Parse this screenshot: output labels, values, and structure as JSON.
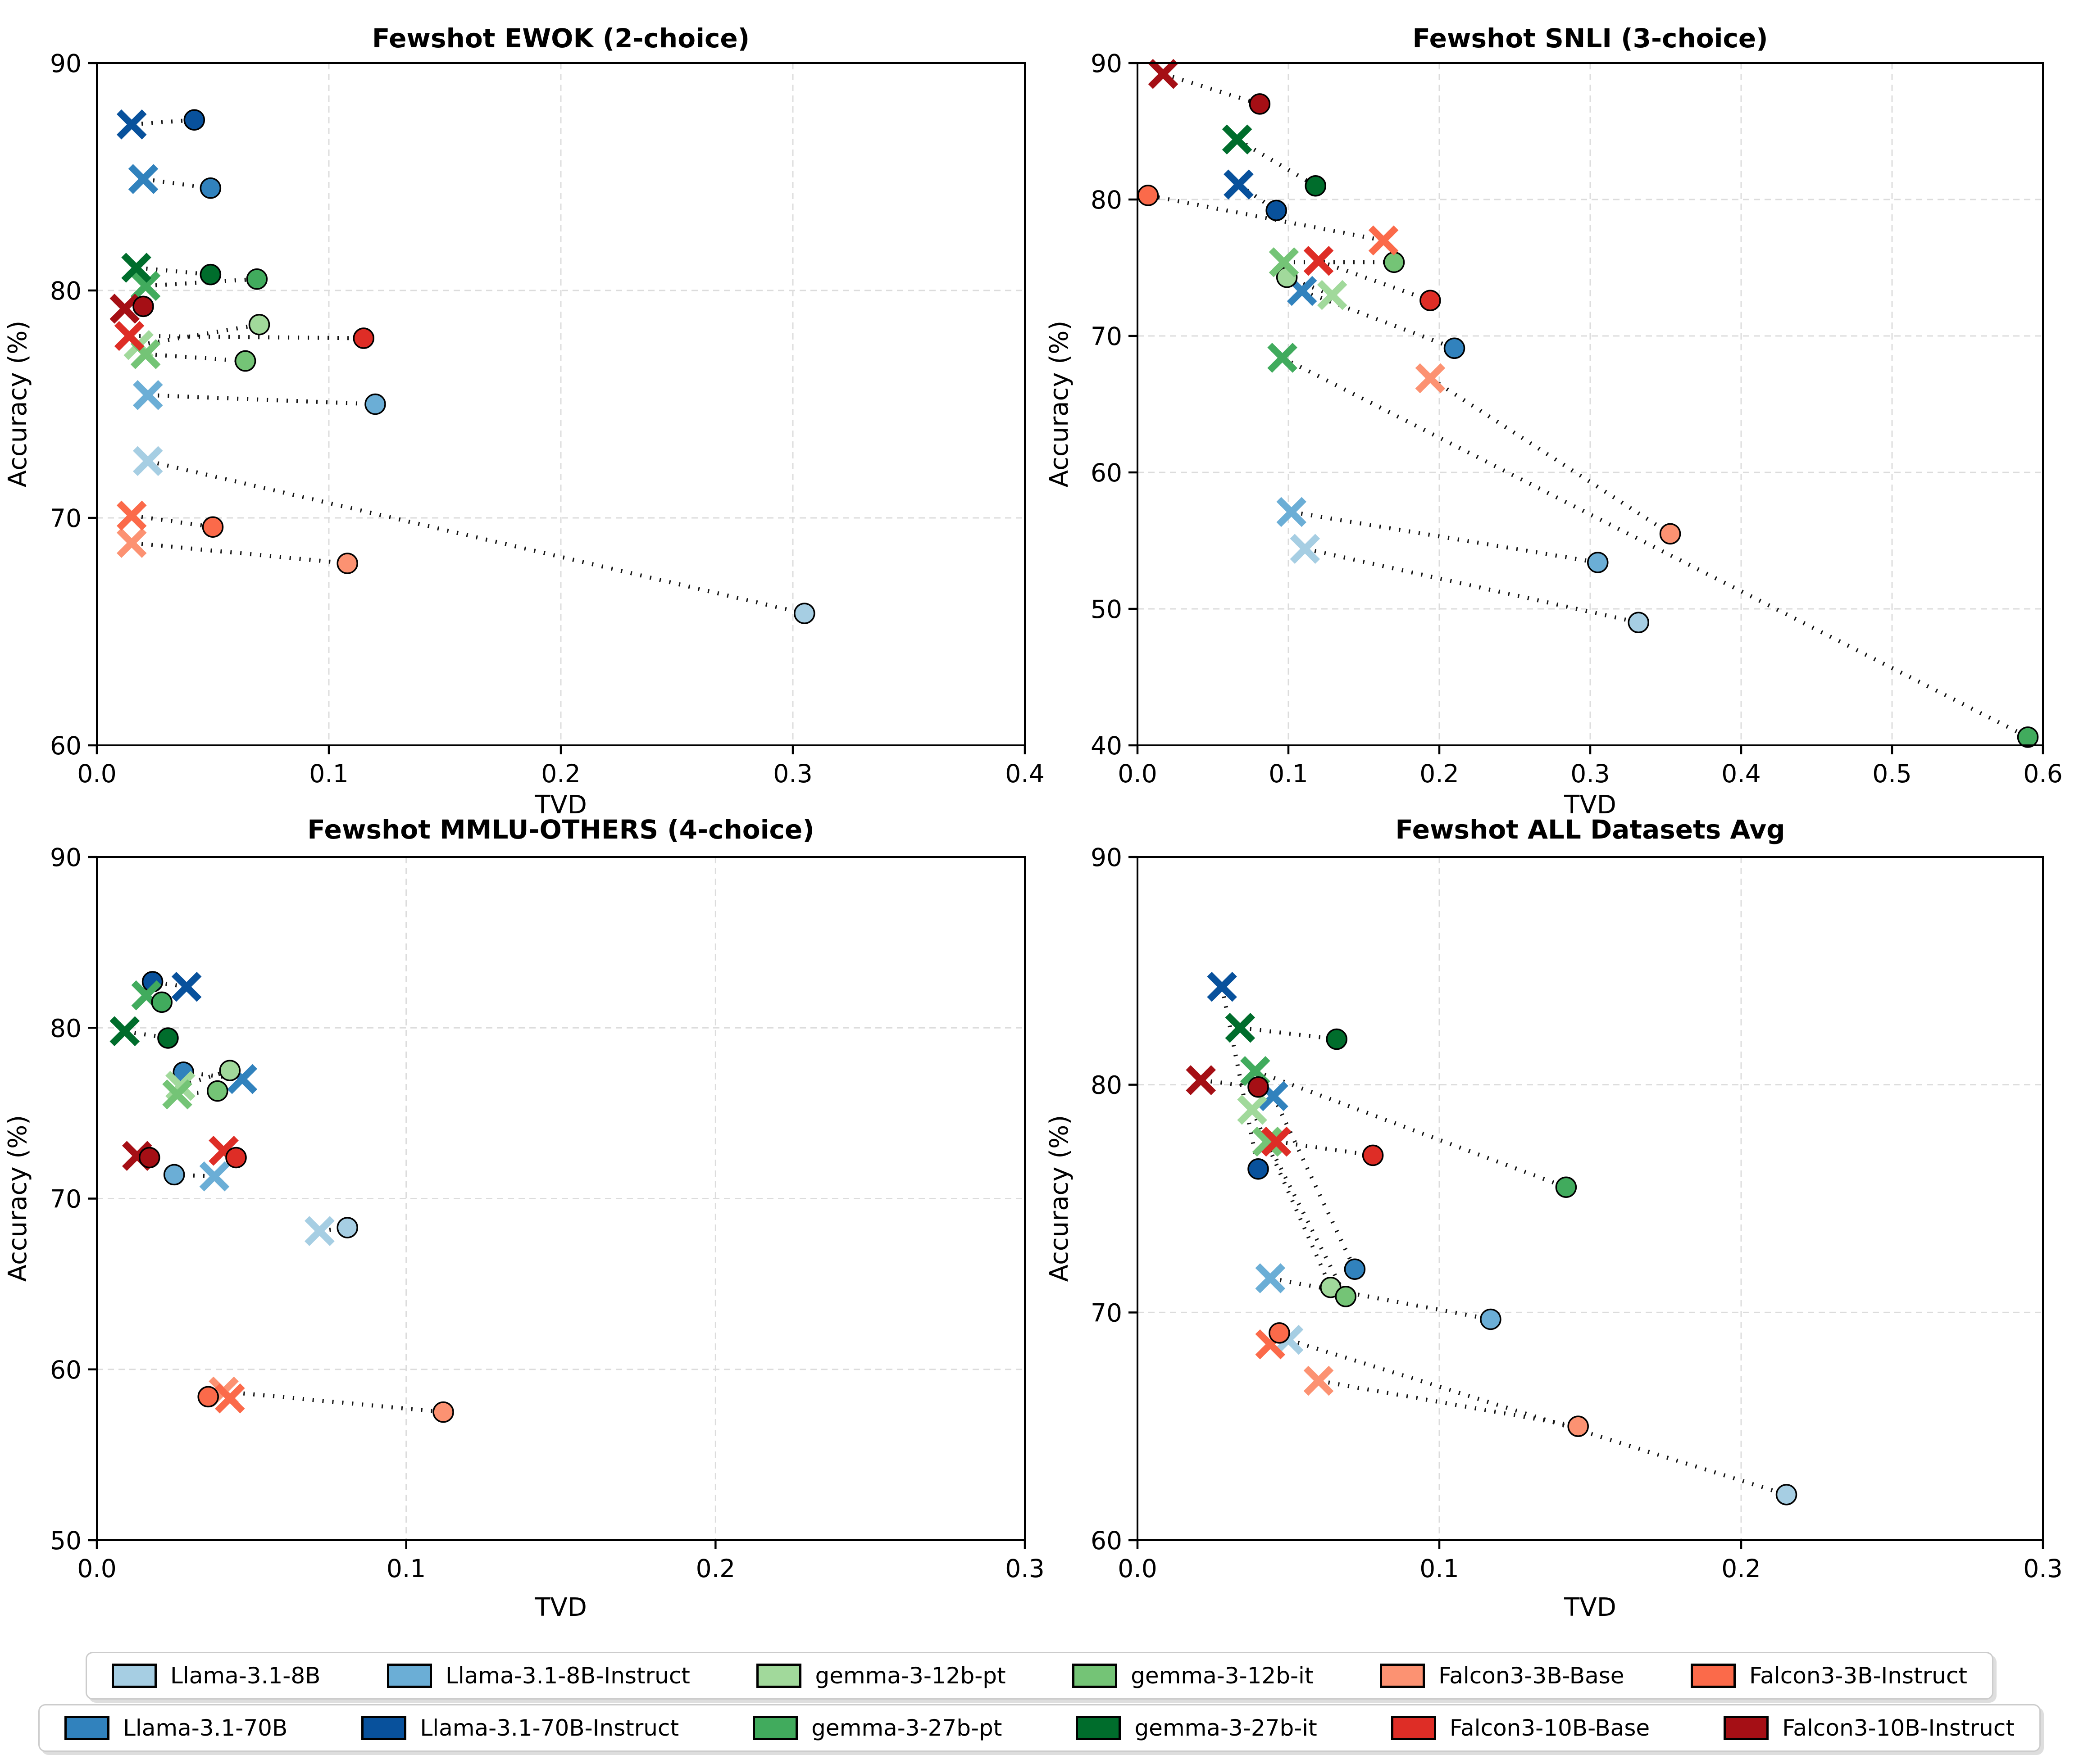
{
  "figure": {
    "xlabel": "TVD",
    "ylabel": "Accuracy (%)"
  },
  "legend": {
    "rows": [
      [
        {
          "label": "Llama-3.1-8B",
          "color": "#a6cee3"
        },
        {
          "label": "Llama-3.1-8B-Instruct",
          "color": "#6baed6"
        },
        {
          "label": "gemma-3-12b-pt",
          "color": "#a1d99b"
        },
        {
          "label": "gemma-3-12b-it",
          "color": "#74c476"
        },
        {
          "label": "Falcon3-3B-Base",
          "color": "#fc9272"
        },
        {
          "label": "Falcon3-3B-Instruct",
          "color": "#fb6a4a"
        }
      ],
      [
        {
          "label": "Llama-3.1-70B",
          "color": "#3182bd"
        },
        {
          "label": "Llama-3.1-70B-Instruct",
          "color": "#08519c"
        },
        {
          "label": "gemma-3-27b-pt",
          "color": "#41ab5d"
        },
        {
          "label": "gemma-3-27b-it",
          "color": "#006d2c"
        },
        {
          "label": "Falcon3-10B-Base",
          "color": "#de2d26"
        },
        {
          "label": "Falcon3-10B-Instruct",
          "color": "#a50f15"
        }
      ]
    ]
  },
  "chart_data": [
    {
      "id": "ewok",
      "type": "scatter",
      "title": "Fewshot EWOK (2-choice)",
      "xlabel": "TVD",
      "ylabel": "Accuracy (%)",
      "xlim": [
        0.0,
        0.4
      ],
      "ylim": [
        60,
        90
      ],
      "xticks": [
        0.0,
        0.1,
        0.2,
        0.3,
        0.4
      ],
      "yticks": [
        60,
        70,
        80,
        90
      ],
      "grid": true,
      "series": [
        {
          "name": "Llama-3.1-8B",
          "color": "#a6cee3",
          "x_marker": [
            0.022,
            72.5
          ],
          "o_marker": [
            0.305,
            65.8
          ]
        },
        {
          "name": "Llama-3.1-8B-Instruct",
          "color": "#6baed6",
          "x_marker": [
            0.022,
            75.4
          ],
          "o_marker": [
            0.12,
            75.0
          ]
        },
        {
          "name": "Llama-3.1-70B",
          "color": "#3182bd",
          "x_marker": [
            0.02,
            84.9
          ],
          "o_marker": [
            0.049,
            84.5
          ]
        },
        {
          "name": "Llama-3.1-70B-Instruct",
          "color": "#08519c",
          "x_marker": [
            0.015,
            87.3
          ],
          "o_marker": [
            0.042,
            87.5
          ]
        },
        {
          "name": "gemma-3-12b-pt",
          "color": "#a1d99b",
          "x_marker": [
            0.018,
            77.6
          ],
          "o_marker": [
            0.07,
            78.5
          ]
        },
        {
          "name": "gemma-3-12b-it",
          "color": "#74c476",
          "x_marker": [
            0.021,
            77.2
          ],
          "o_marker": [
            0.064,
            76.9
          ]
        },
        {
          "name": "gemma-3-27b-pt",
          "color": "#41ab5d",
          "x_marker": [
            0.021,
            80.2
          ],
          "o_marker": [
            0.069,
            80.5
          ]
        },
        {
          "name": "gemma-3-27b-it",
          "color": "#006d2c",
          "x_marker": [
            0.017,
            81.0
          ],
          "o_marker": [
            0.049,
            80.7
          ]
        },
        {
          "name": "Falcon3-3B-Base",
          "color": "#fc9272",
          "x_marker": [
            0.015,
            68.9
          ],
          "o_marker": [
            0.108,
            68.0
          ]
        },
        {
          "name": "Falcon3-3B-Instruct",
          "color": "#fb6a4a",
          "x_marker": [
            0.015,
            70.1
          ],
          "o_marker": [
            0.05,
            69.6
          ]
        },
        {
          "name": "Falcon3-10B-Base",
          "color": "#de2d26",
          "x_marker": [
            0.014,
            78.0
          ],
          "o_marker": [
            0.115,
            77.9
          ]
        },
        {
          "name": "Falcon3-10B-Instruct",
          "color": "#a50f15",
          "x_marker": [
            0.012,
            79.2
          ],
          "o_marker": [
            0.02,
            79.3
          ]
        }
      ]
    },
    {
      "id": "snli",
      "type": "scatter",
      "title": "Fewshot SNLI (3-choice)",
      "xlabel": "TVD",
      "ylabel": "Accuracy (%)",
      "xlim": [
        0.0,
        0.6
      ],
      "ylim": [
        40,
        90
      ],
      "xticks": [
        0.0,
        0.1,
        0.2,
        0.3,
        0.4,
        0.5,
        0.6
      ],
      "yticks": [
        40,
        50,
        60,
        70,
        80,
        90
      ],
      "grid": true,
      "series": [
        {
          "name": "Llama-3.1-8B",
          "color": "#a6cee3",
          "x_marker": [
            0.111,
            54.4
          ],
          "o_marker": [
            0.332,
            49.0
          ]
        },
        {
          "name": "Llama-3.1-8B-Instruct",
          "color": "#6baed6",
          "x_marker": [
            0.102,
            57.1
          ],
          "o_marker": [
            0.305,
            53.4
          ]
        },
        {
          "name": "Llama-3.1-70B",
          "color": "#3182bd",
          "x_marker": [
            0.109,
            73.3
          ],
          "o_marker": [
            0.21,
            69.1
          ]
        },
        {
          "name": "Llama-3.1-70B-Instruct",
          "color": "#08519c",
          "x_marker": [
            0.067,
            81.1
          ],
          "o_marker": [
            0.092,
            79.2
          ]
        },
        {
          "name": "gemma-3-12b-pt",
          "color": "#a1d99b",
          "x_marker": [
            0.129,
            73.0
          ],
          "o_marker": [
            0.099,
            74.3
          ]
        },
        {
          "name": "gemma-3-12b-it",
          "color": "#74c476",
          "x_marker": [
            0.097,
            75.4
          ],
          "o_marker": [
            0.17,
            75.4
          ]
        },
        {
          "name": "gemma-3-27b-pt",
          "color": "#41ab5d",
          "x_marker": [
            0.096,
            68.4
          ],
          "o_marker": [
            0.59,
            40.6
          ]
        },
        {
          "name": "gemma-3-27b-it",
          "color": "#006d2c",
          "x_marker": [
            0.066,
            84.4
          ],
          "o_marker": [
            0.118,
            81.0
          ]
        },
        {
          "name": "Falcon3-3B-Base",
          "color": "#fc9272",
          "x_marker": [
            0.194,
            66.9
          ],
          "o_marker": [
            0.353,
            55.5
          ]
        },
        {
          "name": "Falcon3-3B-Instruct",
          "color": "#fb6a4a",
          "x_marker": [
            0.163,
            77.0
          ],
          "o_marker": [
            0.007,
            80.3
          ]
        },
        {
          "name": "Falcon3-10B-Base",
          "color": "#de2d26",
          "x_marker": [
            0.12,
            75.5
          ],
          "o_marker": [
            0.194,
            72.6
          ]
        },
        {
          "name": "Falcon3-10B-Instruct",
          "color": "#a50f15",
          "x_marker": [
            0.017,
            89.2
          ],
          "o_marker": [
            0.081,
            87.0
          ]
        }
      ]
    },
    {
      "id": "mmlu-others",
      "type": "scatter",
      "title": "Fewshot MMLU-OTHERS (4-choice)",
      "xlabel": "TVD",
      "ylabel": "Accuracy (%)",
      "xlim": [
        0.0,
        0.3
      ],
      "ylim": [
        50,
        90
      ],
      "xticks": [
        0.0,
        0.1,
        0.2,
        0.3
      ],
      "yticks": [
        50,
        60,
        70,
        80,
        90
      ],
      "grid": true,
      "series": [
        {
          "name": "Llama-3.1-8B",
          "color": "#a6cee3",
          "x_marker": [
            0.072,
            68.1
          ],
          "o_marker": [
            0.081,
            68.3
          ]
        },
        {
          "name": "Llama-3.1-8B-Instruct",
          "color": "#6baed6",
          "x_marker": [
            0.038,
            71.3
          ],
          "o_marker": [
            0.025,
            71.4
          ]
        },
        {
          "name": "Llama-3.1-70B",
          "color": "#3182bd",
          "x_marker": [
            0.047,
            77.0
          ],
          "o_marker": [
            0.028,
            77.4
          ]
        },
        {
          "name": "Llama-3.1-70B-Instruct",
          "color": "#08519c",
          "x_marker": [
            0.029,
            82.4
          ],
          "o_marker": [
            0.018,
            82.7
          ]
        },
        {
          "name": "gemma-3-12b-pt",
          "color": "#a1d99b",
          "x_marker": [
            0.027,
            76.6
          ],
          "o_marker": [
            0.043,
            77.5
          ]
        },
        {
          "name": "gemma-3-12b-it",
          "color": "#74c476",
          "x_marker": [
            0.026,
            76.1
          ],
          "o_marker": [
            0.039,
            76.3
          ]
        },
        {
          "name": "gemma-3-27b-pt",
          "color": "#41ab5d",
          "x_marker": [
            0.016,
            81.9
          ],
          "o_marker": [
            0.021,
            81.5
          ]
        },
        {
          "name": "gemma-3-27b-it",
          "color": "#006d2c",
          "x_marker": [
            0.009,
            79.8
          ],
          "o_marker": [
            0.023,
            79.4
          ]
        },
        {
          "name": "Falcon3-3B-Base",
          "color": "#fc9272",
          "x_marker": [
            0.041,
            58.7
          ],
          "o_marker": [
            0.112,
            57.5
          ]
        },
        {
          "name": "Falcon3-3B-Instruct",
          "color": "#fb6a4a",
          "x_marker": [
            0.043,
            58.3
          ],
          "o_marker": [
            0.036,
            58.4
          ]
        },
        {
          "name": "Falcon3-10B-Base",
          "color": "#de2d26",
          "x_marker": [
            0.041,
            72.8
          ],
          "o_marker": [
            0.045,
            72.4
          ]
        },
        {
          "name": "Falcon3-10B-Instruct",
          "color": "#a50f15",
          "x_marker": [
            0.013,
            72.5
          ],
          "o_marker": [
            0.017,
            72.4
          ]
        }
      ]
    },
    {
      "id": "all-datasets-avg",
      "type": "scatter",
      "title": "Fewshot ALL Datasets Avg",
      "xlabel": "TVD",
      "ylabel": "Accuracy (%)",
      "xlim": [
        0.0,
        0.3
      ],
      "ylim": [
        60,
        90
      ],
      "xticks": [
        0.0,
        0.1,
        0.2,
        0.3
      ],
      "yticks": [
        60,
        70,
        80,
        90
      ],
      "grid": true,
      "series": [
        {
          "name": "Llama-3.1-8B",
          "color": "#a6cee3",
          "x_marker": [
            0.05,
            68.8
          ],
          "o_marker": [
            0.215,
            62.0
          ]
        },
        {
          "name": "Llama-3.1-8B-Instruct",
          "color": "#6baed6",
          "x_marker": [
            0.044,
            71.5
          ],
          "o_marker": [
            0.117,
            69.7
          ]
        },
        {
          "name": "Llama-3.1-70B",
          "color": "#3182bd",
          "x_marker": [
            0.045,
            79.5
          ],
          "o_marker": [
            0.072,
            71.9
          ]
        },
        {
          "name": "Llama-3.1-70B-Instruct",
          "color": "#08519c",
          "x_marker": [
            0.028,
            84.3
          ],
          "o_marker": [
            0.04,
            76.3
          ]
        },
        {
          "name": "gemma-3-12b-pt",
          "color": "#a1d99b",
          "x_marker": [
            0.038,
            78.9
          ],
          "o_marker": [
            0.064,
            71.1
          ]
        },
        {
          "name": "gemma-3-12b-it",
          "color": "#74c476",
          "x_marker": [
            0.043,
            77.5
          ],
          "o_marker": [
            0.069,
            70.7
          ]
        },
        {
          "name": "gemma-3-27b-pt",
          "color": "#41ab5d",
          "x_marker": [
            0.039,
            80.6
          ],
          "o_marker": [
            0.142,
            75.5
          ]
        },
        {
          "name": "gemma-3-27b-it",
          "color": "#006d2c",
          "x_marker": [
            0.034,
            82.5
          ],
          "o_marker": [
            0.066,
            82.0
          ]
        },
        {
          "name": "Falcon3-3B-Base",
          "color": "#fc9272",
          "x_marker": [
            0.06,
            67.0
          ],
          "o_marker": [
            0.146,
            65.0
          ]
        },
        {
          "name": "Falcon3-3B-Instruct",
          "color": "#fb6a4a",
          "x_marker": [
            0.044,
            68.6
          ],
          "o_marker": [
            0.047,
            69.1
          ]
        },
        {
          "name": "Falcon3-10B-Base",
          "color": "#de2d26",
          "x_marker": [
            0.046,
            77.5
          ],
          "o_marker": [
            0.078,
            76.9
          ]
        },
        {
          "name": "Falcon3-10B-Instruct",
          "color": "#a50f15",
          "x_marker": [
            0.021,
            80.2
          ],
          "o_marker": [
            0.04,
            79.9
          ]
        }
      ]
    }
  ]
}
